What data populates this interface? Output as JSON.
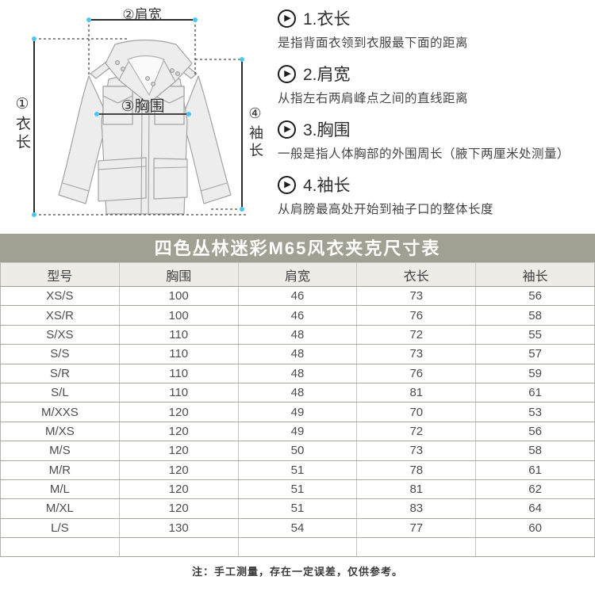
{
  "diagram": {
    "label_length": "①衣长",
    "label_shoulder": "②肩宽",
    "label_chest": "③胸围",
    "label_sleeve": "④袖长"
  },
  "icons": {
    "play": "▶"
  },
  "definitions": [
    {
      "title": "1.衣长",
      "desc": "是指背面衣领到衣服最下面的距离"
    },
    {
      "title": "2.肩宽",
      "desc": "从指左右两肩峰点之间的直线距离"
    },
    {
      "title": "3.胸围",
      "desc": "一般是指人体胸部的外围周长（腋下两厘米处测量）"
    },
    {
      "title": "4.袖长",
      "desc": "从肩膀最高处开始到袖子口的整体长度"
    }
  ],
  "table": {
    "title": "四色丛林迷彩M65风衣夹克尺寸表",
    "columns": [
      "型号",
      "胸围",
      "肩宽",
      "衣长",
      "袖长"
    ],
    "rows": [
      [
        "XS/S",
        "100",
        "46",
        "73",
        "56"
      ],
      [
        "XS/R",
        "100",
        "46",
        "76",
        "58"
      ],
      [
        "S/XS",
        "110",
        "48",
        "72",
        "55"
      ],
      [
        "S/S",
        "110",
        "48",
        "73",
        "57"
      ],
      [
        "S/R",
        "110",
        "48",
        "76",
        "59"
      ],
      [
        "S/L",
        "110",
        "48",
        "81",
        "61"
      ],
      [
        "M/XXS",
        "120",
        "49",
        "70",
        "53"
      ],
      [
        "M/XS",
        "120",
        "49",
        "72",
        "56"
      ],
      [
        "M/S",
        "120",
        "50",
        "73",
        "58"
      ],
      [
        "M/R",
        "120",
        "51",
        "78",
        "61"
      ],
      [
        "M/L",
        "120",
        "51",
        "81",
        "62"
      ],
      [
        "M/XL",
        "120",
        "51",
        "83",
        "64"
      ],
      [
        "L/S",
        "130",
        "54",
        "77",
        "60"
      ],
      [
        "",
        "",
        "",
        "",
        ""
      ]
    ]
  },
  "note": "注：手工测量，存在一定误差，仅供参考。",
  "colors": {
    "title_bar_bg": "#a0a093",
    "header_row_bg": "#edece7",
    "border_dark": "#a8a8a0",
    "border_light": "#c6c6be",
    "measure_dot": "#4fc7ee",
    "measure_line": "#2b2b2b",
    "jacket_fill": "#ededed",
    "jacket_stroke": "#a3a3a3"
  }
}
